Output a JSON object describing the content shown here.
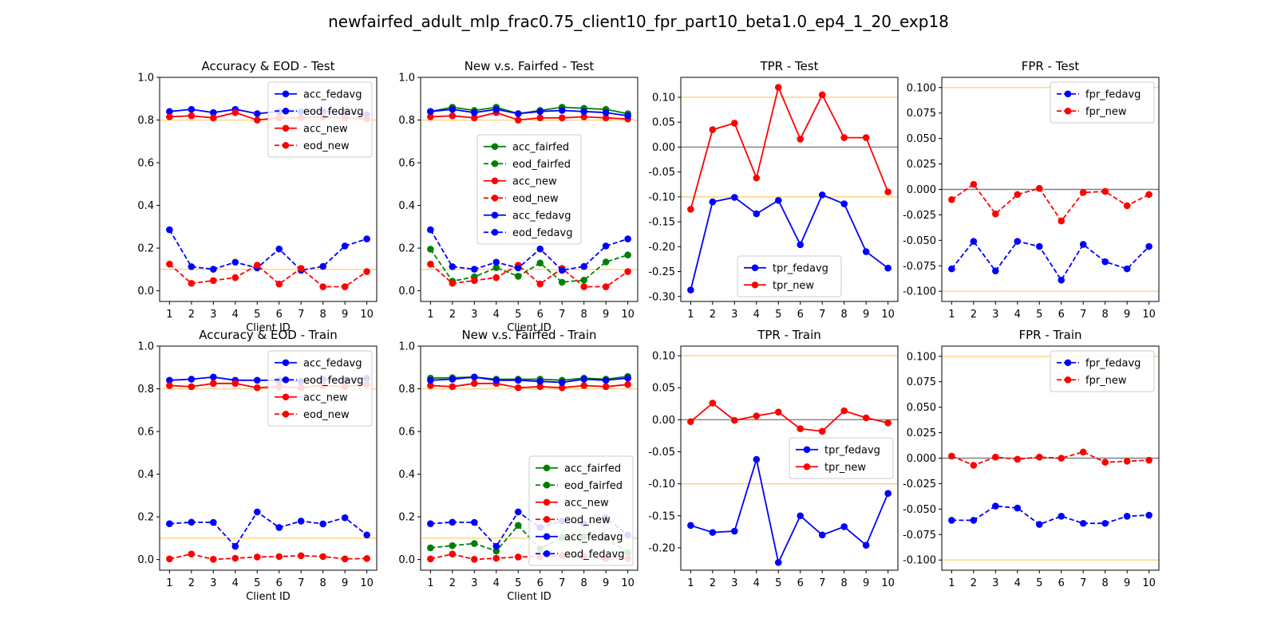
{
  "figure_title": "newfairfed_adult_mlp_frac0.75_client10_fpr_part10_beta1.0_ep4_1_20_exp18",
  "colors": {
    "fedavg": "#0000ff",
    "new": "#ff0000",
    "fairfed": "#008000",
    "threshold": "#ffd27f",
    "zero": "#808080"
  },
  "chart_data": [
    {
      "type": "line",
      "title": "Accuracy & EOD - Test",
      "xlabel": "Client ID",
      "x": [
        1,
        2,
        3,
        4,
        5,
        6,
        7,
        8,
        9,
        10
      ],
      "ylim": [
        -0.05,
        1.0
      ],
      "yticks": [
        "0.0",
        "0.2",
        "0.4",
        "0.6",
        "0.8",
        "1.0"
      ],
      "hlines": [
        {
          "y": 0.8,
          "color": "threshold"
        },
        {
          "y": 0.1,
          "color": "threshold"
        }
      ],
      "legend_loc": "upper-right",
      "series": [
        {
          "name": "acc_fedavg",
          "color": "fedavg",
          "dash": false,
          "values": [
            0.84,
            0.85,
            0.835,
            0.85,
            0.83,
            0.84,
            0.84,
            0.84,
            0.835,
            0.825
          ]
        },
        {
          "name": "eod_fedavg",
          "color": "fedavg",
          "dash": true,
          "values": [
            0.286,
            0.113,
            0.101,
            0.134,
            0.107,
            0.196,
            0.096,
            0.114,
            0.21,
            0.243
          ]
        },
        {
          "name": "acc_new",
          "color": "new",
          "dash": false,
          "values": [
            0.815,
            0.82,
            0.81,
            0.835,
            0.8,
            0.81,
            0.81,
            0.815,
            0.81,
            0.805
          ]
        },
        {
          "name": "eod_new",
          "color": "new",
          "dash": true,
          "values": [
            0.125,
            0.035,
            0.048,
            0.062,
            0.12,
            0.032,
            0.105,
            0.019,
            0.019,
            0.09
          ]
        }
      ]
    },
    {
      "type": "line",
      "title": "New v.s. Fairfed - Test",
      "xlabel": "Client ID",
      "x": [
        1,
        2,
        3,
        4,
        5,
        6,
        7,
        8,
        9,
        10
      ],
      "ylim": [
        -0.05,
        1.0
      ],
      "yticks": [
        "0.0",
        "0.2",
        "0.4",
        "0.6",
        "0.8",
        "1.0"
      ],
      "hlines": [
        {
          "y": 0.8,
          "color": "threshold"
        },
        {
          "y": 0.1,
          "color": "threshold"
        }
      ],
      "legend_loc": "center",
      "series": [
        {
          "name": "acc_fairfed",
          "color": "fairfed",
          "dash": false,
          "values": [
            0.84,
            0.86,
            0.845,
            0.86,
            0.83,
            0.845,
            0.86,
            0.855,
            0.85,
            0.83
          ]
        },
        {
          "name": "eod_fairfed",
          "color": "fairfed",
          "dash": true,
          "values": [
            0.195,
            0.045,
            0.065,
            0.108,
            0.068,
            0.13,
            0.04,
            0.05,
            0.135,
            0.168
          ]
        },
        {
          "name": "acc_new",
          "color": "new",
          "dash": false,
          "values": [
            0.815,
            0.82,
            0.81,
            0.835,
            0.8,
            0.81,
            0.81,
            0.815,
            0.81,
            0.805
          ]
        },
        {
          "name": "eod_new",
          "color": "new",
          "dash": true,
          "values": [
            0.125,
            0.035,
            0.048,
            0.062,
            0.12,
            0.032,
            0.105,
            0.019,
            0.019,
            0.09
          ]
        },
        {
          "name": "acc_fedavg",
          "color": "fedavg",
          "dash": false,
          "values": [
            0.84,
            0.85,
            0.835,
            0.85,
            0.83,
            0.84,
            0.845,
            0.84,
            0.835,
            0.82
          ]
        },
        {
          "name": "eod_fedavg",
          "color": "fedavg",
          "dash": true,
          "values": [
            0.286,
            0.113,
            0.101,
            0.134,
            0.107,
            0.196,
            0.096,
            0.114,
            0.21,
            0.243
          ]
        }
      ]
    },
    {
      "type": "line",
      "title": "TPR - Test",
      "xlabel": "",
      "x": [
        1,
        2,
        3,
        4,
        5,
        6,
        7,
        8,
        9,
        10
      ],
      "ylim": [
        -0.31,
        0.14
      ],
      "yticks": [
        "-0.30",
        "-0.25",
        "-0.20",
        "-0.15",
        "-0.10",
        "-0.05",
        "0.00",
        "0.05",
        "0.10"
      ],
      "hlines": [
        {
          "y": 0.1,
          "color": "threshold"
        },
        {
          "y": -0.1,
          "color": "threshold"
        },
        {
          "y": 0.0,
          "color": "zero"
        }
      ],
      "legend_loc": "lower-center",
      "series": [
        {
          "name": "tpr_fedavg",
          "color": "fedavg",
          "dash": false,
          "values": [
            -0.287,
            -0.11,
            -0.101,
            -0.134,
            -0.107,
            -0.196,
            -0.096,
            -0.114,
            -0.21,
            -0.243
          ]
        },
        {
          "name": "tpr_new",
          "color": "new",
          "dash": false,
          "values": [
            -0.125,
            0.035,
            0.048,
            -0.062,
            0.12,
            0.016,
            0.105,
            0.019,
            0.019,
            -0.09
          ]
        }
      ]
    },
    {
      "type": "line",
      "title": "FPR - Test",
      "xlabel": "",
      "x": [
        1,
        2,
        3,
        4,
        5,
        6,
        7,
        8,
        9,
        10
      ],
      "ylim": [
        -0.11,
        0.11
      ],
      "yticks": [
        "-0.100",
        "-0.075",
        "-0.050",
        "-0.025",
        "0.000",
        "0.025",
        "0.050",
        "0.075",
        "0.100"
      ],
      "hlines": [
        {
          "y": 0.1,
          "color": "threshold"
        },
        {
          "y": -0.1,
          "color": "threshold"
        },
        {
          "y": 0.0,
          "color": "zero"
        }
      ],
      "legend_loc": "upper-right",
      "series": [
        {
          "name": "fpr_fedavg",
          "color": "fedavg",
          "dash": true,
          "values": [
            -0.078,
            -0.051,
            -0.08,
            -0.051,
            -0.056,
            -0.089,
            -0.054,
            -0.071,
            -0.078,
            -0.056
          ]
        },
        {
          "name": "fpr_new",
          "color": "new",
          "dash": true,
          "values": [
            -0.01,
            0.005,
            -0.024,
            -0.005,
            0.001,
            -0.031,
            -0.003,
            -0.002,
            -0.016,
            -0.005
          ]
        }
      ]
    },
    {
      "type": "line",
      "title": "Accuracy & EOD - Train",
      "xlabel": "Client ID",
      "x": [
        1,
        2,
        3,
        4,
        5,
        6,
        7,
        8,
        9,
        10
      ],
      "ylim": [
        -0.05,
        1.0
      ],
      "yticks": [
        "0.0",
        "0.2",
        "0.4",
        "0.6",
        "0.8",
        "1.0"
      ],
      "hlines": [
        {
          "y": 0.8,
          "color": "threshold"
        },
        {
          "y": 0.1,
          "color": "threshold"
        }
      ],
      "legend_loc": "upper-right",
      "series": [
        {
          "name": "acc_fedavg",
          "color": "fedavg",
          "dash": false,
          "values": [
            0.84,
            0.845,
            0.855,
            0.84,
            0.84,
            0.84,
            0.835,
            0.845,
            0.84,
            0.85
          ]
        },
        {
          "name": "eod_fedavg",
          "color": "fedavg",
          "dash": true,
          "values": [
            0.168,
            0.175,
            0.174,
            0.062,
            0.223,
            0.15,
            0.18,
            0.167,
            0.196,
            0.115
          ]
        },
        {
          "name": "acc_new",
          "color": "new",
          "dash": false,
          "values": [
            0.815,
            0.81,
            0.825,
            0.825,
            0.805,
            0.81,
            0.805,
            0.815,
            0.81,
            0.82
          ]
        },
        {
          "name": "eod_new",
          "color": "new",
          "dash": true,
          "values": [
            0.003,
            0.026,
            0.001,
            0.006,
            0.012,
            0.014,
            0.018,
            0.014,
            0.003,
            0.005
          ]
        }
      ]
    },
    {
      "type": "line",
      "title": "New v.s. Fairfed - Train",
      "xlabel": "Client ID",
      "x": [
        1,
        2,
        3,
        4,
        5,
        6,
        7,
        8,
        9,
        10
      ],
      "ylim": [
        -0.05,
        1.0
      ],
      "yticks": [
        "0.0",
        "0.2",
        "0.4",
        "0.6",
        "0.8",
        "1.0"
      ],
      "hlines": [
        {
          "y": 0.8,
          "color": "threshold"
        },
        {
          "y": 0.1,
          "color": "threshold"
        }
      ],
      "legend_loc": "lower-right",
      "series": [
        {
          "name": "acc_fairfed",
          "color": "fairfed",
          "dash": false,
          "values": [
            0.85,
            0.852,
            0.855,
            0.845,
            0.845,
            0.845,
            0.84,
            0.85,
            0.845,
            0.858
          ]
        },
        {
          "name": "eod_fairfed",
          "color": "fairfed",
          "dash": true,
          "values": [
            0.055,
            0.065,
            0.075,
            0.04,
            0.16,
            0.05,
            0.103,
            0.107,
            0.1,
            0.033
          ]
        },
        {
          "name": "acc_new",
          "color": "new",
          "dash": false,
          "values": [
            0.815,
            0.81,
            0.825,
            0.825,
            0.805,
            0.81,
            0.805,
            0.815,
            0.81,
            0.82
          ]
        },
        {
          "name": "eod_new",
          "color": "new",
          "dash": true,
          "values": [
            0.003,
            0.026,
            0.001,
            0.006,
            0.012,
            0.014,
            0.018,
            0.014,
            0.003,
            0.005
          ]
        },
        {
          "name": "acc_fedavg",
          "color": "fedavg",
          "dash": false,
          "values": [
            0.84,
            0.845,
            0.855,
            0.84,
            0.84,
            0.835,
            0.83,
            0.845,
            0.84,
            0.85
          ]
        },
        {
          "name": "eod_fedavg",
          "color": "fedavg",
          "dash": true,
          "values": [
            0.168,
            0.175,
            0.174,
            0.062,
            0.223,
            0.15,
            0.18,
            0.167,
            0.196,
            0.115
          ]
        }
      ]
    },
    {
      "type": "line",
      "title": "TPR - Train",
      "xlabel": "",
      "x": [
        1,
        2,
        3,
        4,
        5,
        6,
        7,
        8,
        9,
        10
      ],
      "ylim": [
        -0.235,
        0.115
      ],
      "yticks": [
        "-0.20",
        "-0.15",
        "-0.10",
        "-0.05",
        "0.00",
        "0.05",
        "0.10"
      ],
      "hlines": [
        {
          "y": 0.1,
          "color": "threshold"
        },
        {
          "y": -0.1,
          "color": "threshold"
        },
        {
          "y": 0.0,
          "color": "zero"
        }
      ],
      "legend_loc": "center-right",
      "series": [
        {
          "name": "tpr_fedavg",
          "color": "fedavg",
          "dash": false,
          "values": [
            -0.165,
            -0.176,
            -0.174,
            -0.062,
            -0.223,
            -0.15,
            -0.18,
            -0.167,
            -0.196,
            -0.115
          ]
        },
        {
          "name": "tpr_new",
          "color": "new",
          "dash": false,
          "values": [
            -0.003,
            0.026,
            -0.001,
            0.006,
            0.012,
            -0.014,
            -0.018,
            0.014,
            0.003,
            -0.005
          ]
        }
      ]
    },
    {
      "type": "line",
      "title": "FPR - Train",
      "xlabel": "",
      "x": [
        1,
        2,
        3,
        4,
        5,
        6,
        7,
        8,
        9,
        10
      ],
      "ylim": [
        -0.11,
        0.11
      ],
      "yticks": [
        "-0.100",
        "-0.075",
        "-0.050",
        "-0.025",
        "0.000",
        "0.025",
        "0.050",
        "0.075",
        "0.100"
      ],
      "hlines": [
        {
          "y": 0.1,
          "color": "threshold"
        },
        {
          "y": -0.1,
          "color": "threshold"
        },
        {
          "y": 0.0,
          "color": "zero"
        }
      ],
      "legend_loc": "upper-right",
      "series": [
        {
          "name": "fpr_fedavg",
          "color": "fedavg",
          "dash": true,
          "values": [
            -0.061,
            -0.061,
            -0.047,
            -0.049,
            -0.065,
            -0.057,
            -0.064,
            -0.064,
            -0.057,
            -0.056
          ]
        },
        {
          "name": "fpr_new",
          "color": "new",
          "dash": true,
          "values": [
            0.002,
            -0.007,
            0.001,
            -0.001,
            0.001,
            0.0,
            0.006,
            -0.004,
            -0.003,
            -0.002
          ]
        }
      ]
    }
  ]
}
